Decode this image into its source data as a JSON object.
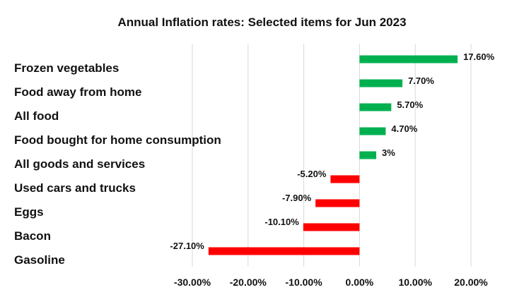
{
  "chart_data": {
    "type": "bar",
    "orientation": "horizontal",
    "title": "Annual Inflation rates: Selected items for Jun 2023",
    "categories": [
      "Frozen vegetables",
      "Food away from home",
      "All food",
      "Food bought for home consumption",
      "All goods and services",
      "Used cars and trucks",
      "Eggs",
      "Bacon",
      "Gasoline"
    ],
    "values": [
      17.6,
      7.7,
      5.7,
      4.7,
      3,
      -5.2,
      -7.9,
      -10.1,
      -27.1
    ],
    "data_labels": [
      "17.60%",
      "7.70%",
      "5.70%",
      "4.70%",
      "3%",
      "-5.20%",
      "-7.90%",
      "-10.10%",
      "-27.10%"
    ],
    "xlim": [
      -30,
      20
    ],
    "x_ticks": [
      -30,
      -20,
      -10,
      0,
      10,
      20
    ],
    "x_tick_labels": [
      "-30.00%",
      "-20.00%",
      "-10.00%",
      "0.00%",
      "10.00%",
      "20.00%"
    ],
    "grid": "vertical",
    "colors": {
      "positive": "#00b050",
      "negative": "#ff0000",
      "grid": "#d9d9d9"
    }
  }
}
